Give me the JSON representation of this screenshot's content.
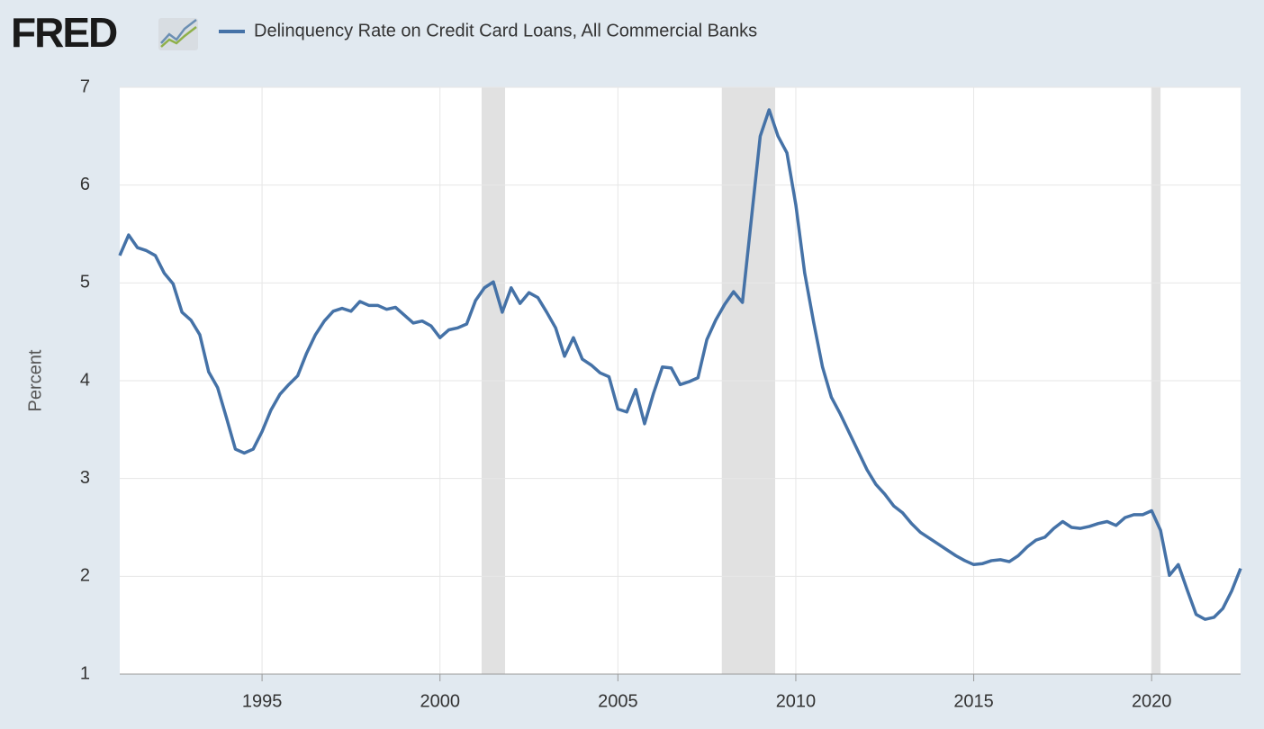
{
  "logo": "FRED",
  "chart_data": {
    "type": "line",
    "y_label": "Percent",
    "x": [
      1991,
      1991.25,
      1991.5,
      1991.75,
      1992,
      1992.25,
      1992.5,
      1992.75,
      1993,
      1993.25,
      1993.5,
      1993.75,
      1994,
      1994.25,
      1994.5,
      1994.75,
      1995,
      1995.25,
      1995.5,
      1995.75,
      1996,
      1996.25,
      1996.5,
      1996.75,
      1997,
      1997.25,
      1997.5,
      1997.75,
      1998,
      1998.25,
      1998.5,
      1998.75,
      1999,
      1999.25,
      1999.5,
      1999.75,
      2000,
      2000.25,
      2000.5,
      2000.75,
      2001,
      2001.25,
      2001.5,
      2001.75,
      2002,
      2002.25,
      2002.5,
      2002.75,
      2003,
      2003.25,
      2003.5,
      2003.75,
      2004,
      2004.25,
      2004.5,
      2004.75,
      2005,
      2005.25,
      2005.5,
      2005.75,
      2006,
      2006.25,
      2006.5,
      2006.75,
      2007,
      2007.25,
      2007.5,
      2007.75,
      2008,
      2008.25,
      2008.5,
      2008.75,
      2009,
      2009.25,
      2009.5,
      2009.75,
      2010,
      2010.25,
      2010.5,
      2010.75,
      2011,
      2011.25,
      2011.5,
      2011.75,
      2012,
      2012.25,
      2012.5,
      2012.75,
      2013,
      2013.25,
      2013.5,
      2013.75,
      2014,
      2014.25,
      2014.5,
      2014.75,
      2015,
      2015.25,
      2015.5,
      2015.75,
      2016,
      2016.25,
      2016.5,
      2016.75,
      2017,
      2017.25,
      2017.5,
      2017.75,
      2018,
      2018.25,
      2018.5,
      2018.75,
      2019,
      2019.25,
      2019.5,
      2019.75,
      2020,
      2020.25,
      2020.5,
      2020.75,
      2021,
      2021.25,
      2021.5,
      2021.75,
      2022,
      2022.25,
      2022.5
    ],
    "series": [
      {
        "name": "Delinquency Rate on Credit Card Loans, All Commercial Banks",
        "color": "#4572a7",
        "values": [
          5.28,
          5.49,
          5.36,
          5.33,
          5.28,
          5.1,
          4.99,
          4.7,
          4.62,
          4.47,
          4.09,
          3.93,
          3.62,
          3.3,
          3.26,
          3.3,
          3.48,
          3.7,
          3.86,
          3.96,
          4.05,
          4.28,
          4.47,
          4.61,
          4.71,
          4.74,
          4.71,
          4.81,
          4.77,
          4.77,
          4.73,
          4.75,
          4.67,
          4.59,
          4.61,
          4.56,
          4.44,
          4.52,
          4.54,
          4.58,
          4.82,
          4.95,
          5.01,
          4.7,
          4.95,
          4.79,
          4.9,
          4.85,
          4.7,
          4.54,
          4.25,
          4.44,
          4.22,
          4.16,
          4.08,
          4.04,
          3.71,
          3.68,
          3.91,
          3.56,
          3.87,
          4.14,
          4.13,
          3.96,
          3.99,
          4.03,
          4.42,
          4.62,
          4.78,
          4.91,
          4.8,
          5.65,
          6.5,
          6.77,
          6.5,
          6.33,
          5.8,
          5.1,
          4.6,
          4.14,
          3.83,
          3.66,
          3.47,
          3.28,
          3.09,
          2.94,
          2.84,
          2.72,
          2.65,
          2.54,
          2.45,
          2.39,
          2.33,
          2.27,
          2.21,
          2.16,
          2.12,
          2.13,
          2.16,
          2.17,
          2.15,
          2.21,
          2.3,
          2.37,
          2.4,
          2.49,
          2.56,
          2.5,
          2.49,
          2.51,
          2.54,
          2.56,
          2.52,
          2.6,
          2.63,
          2.63,
          2.67,
          2.47,
          2.01,
          2.12,
          1.86,
          1.61,
          1.56,
          1.58,
          1.67,
          1.85,
          2.08
        ]
      }
    ],
    "recessions": [
      [
        2001.17,
        2001.83
      ],
      [
        2007.92,
        2009.42
      ],
      [
        2020.0,
        2020.25
      ]
    ],
    "recession_color": "#e1e1e1",
    "xlim": [
      1991,
      2022.5
    ],
    "ylim": [
      1,
      7
    ],
    "xticks": [
      1995,
      2000,
      2005,
      2010,
      2015,
      2020
    ],
    "yticks": [
      1,
      2,
      3,
      4,
      5,
      6,
      7
    ],
    "grid": true
  }
}
